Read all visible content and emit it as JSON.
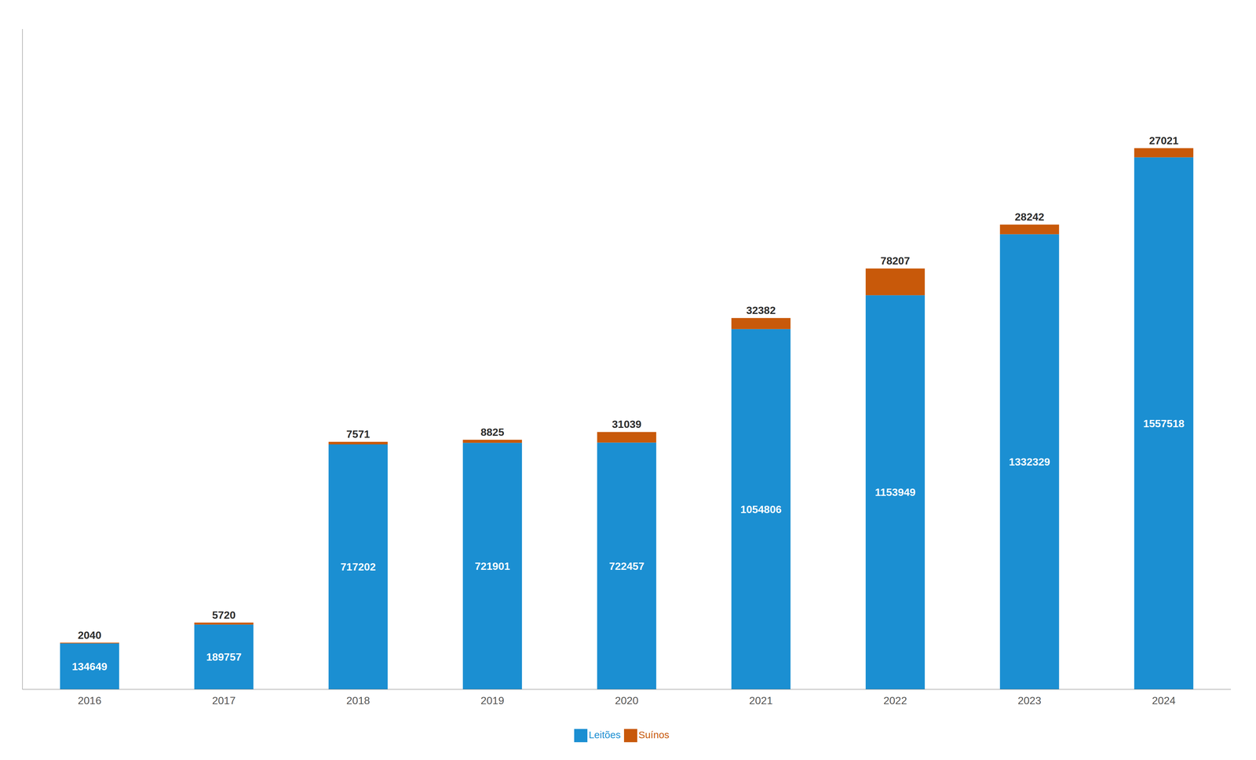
{
  "chart_data": {
    "type": "bar",
    "categories": [
      "2016",
      "2017",
      "2018",
      "2019",
      "2020",
      "2021",
      "2022",
      "2023",
      "2024"
    ],
    "series": [
      {
        "name": "Leitões",
        "color": "#1b8fd2",
        "values": [
          134649,
          189757,
          717202,
          721901,
          722457,
          1054806,
          1153949,
          1332329,
          1557518
        ]
      },
      {
        "name": "Suínos",
        "color": "#c8590a",
        "values": [
          2040,
          5720,
          7571,
          8825,
          31039,
          32382,
          78207,
          28242,
          27021
        ]
      }
    ],
    "ylim": [
      0,
      1933137.58
    ],
    "stacked": true,
    "data_labels": true,
    "grid": false,
    "legend": "bottom",
    "tick_labels": "x"
  }
}
